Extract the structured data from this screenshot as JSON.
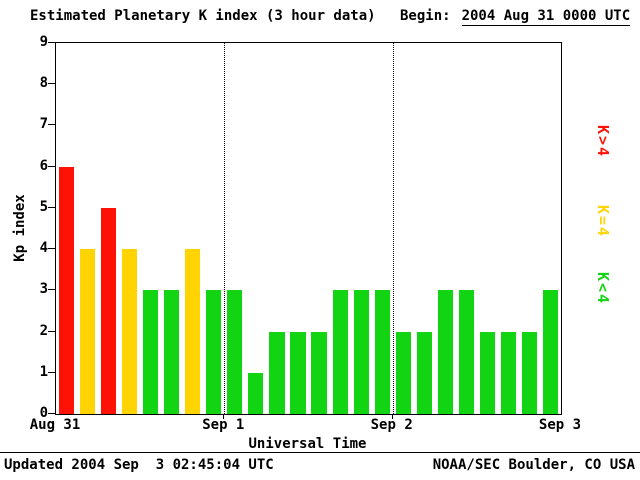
{
  "header": {
    "title": "Estimated Planetary K index (3 hour data)",
    "begin_label": "Begin:",
    "begin_value": "2004 Aug 31 0000 UTC"
  },
  "footer": {
    "updated": "Updated 2004 Sep  3 02:45:04 UTC",
    "source": "NOAA/SEC Boulder, CO USA"
  },
  "legend": [
    {
      "name": "k-gt-4",
      "label": "K>4",
      "color": "#ff1105"
    },
    {
      "name": "k-eq-4",
      "label": "K=4",
      "color": "#ffd400"
    },
    {
      "name": "k-lt-4",
      "label": "K<4",
      "color": "#12d412"
    }
  ],
  "chart_data": {
    "type": "bar",
    "title": "Estimated Planetary K index (3 hour data)",
    "begin": "2004 Aug 31 0000 UTC",
    "xlabel": "Universal Time",
    "ylabel": "Kp index",
    "ylim": [
      0,
      9
    ],
    "y_ticks": [
      0,
      1,
      2,
      3,
      4,
      5,
      6,
      7,
      8,
      9
    ],
    "x_tick_labels": [
      "Aug 31",
      "Sep 1",
      "Sep 2",
      "Sep 3"
    ],
    "days": 3,
    "bin_hours": 3,
    "values": [
      6,
      4,
      5,
      4,
      3,
      3,
      4,
      3,
      3,
      1,
      2,
      2,
      2,
      3,
      3,
      3,
      2,
      2,
      3,
      3,
      2,
      2,
      2,
      3
    ],
    "colors": {
      "gt4": "#ff1105",
      "eq4": "#ffd400",
      "lt4": "#12d412"
    },
    "grid": "dotted vertical lines at day boundaries",
    "legend_position": "right"
  }
}
